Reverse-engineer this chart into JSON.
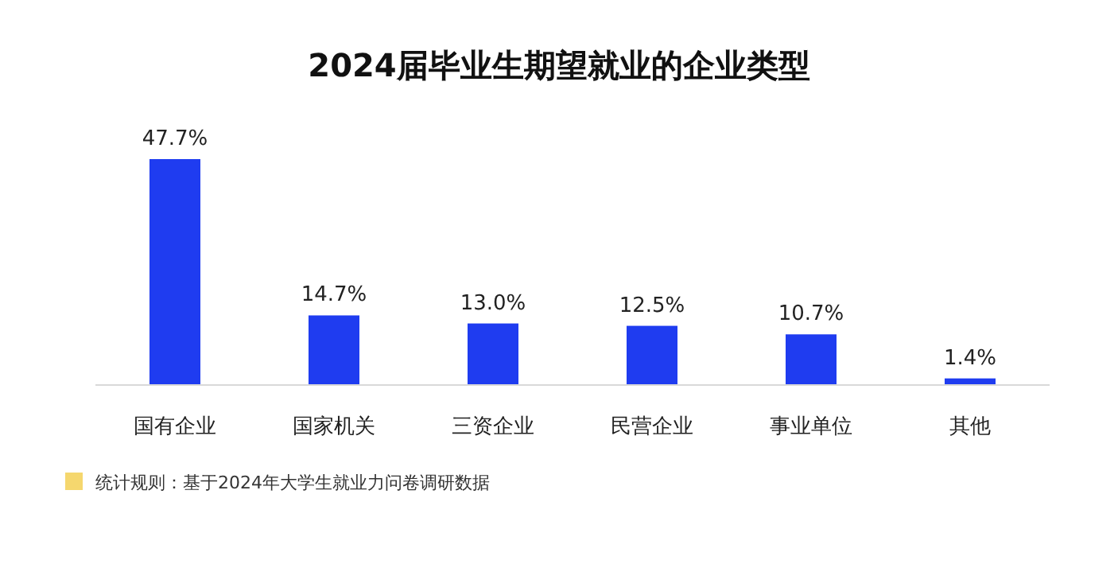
{
  "chart_data": {
    "type": "bar",
    "title": "2024届毕业生期望就业的企业类型",
    "categories": [
      "国有企业",
      "国家机关",
      "三资企业",
      "民营企业",
      "事业单位",
      "其他"
    ],
    "values": [
      47.7,
      14.7,
      13.0,
      12.5,
      10.7,
      1.4
    ],
    "value_labels": [
      "47.7%",
      "14.7%",
      "13.0%",
      "12.5%",
      "10.7%",
      "1.4%"
    ],
    "color": "#1f3cf0",
    "annotations": [
      "统计规则：基于2024年大学生就业力问卷调研数据"
    ]
  }
}
